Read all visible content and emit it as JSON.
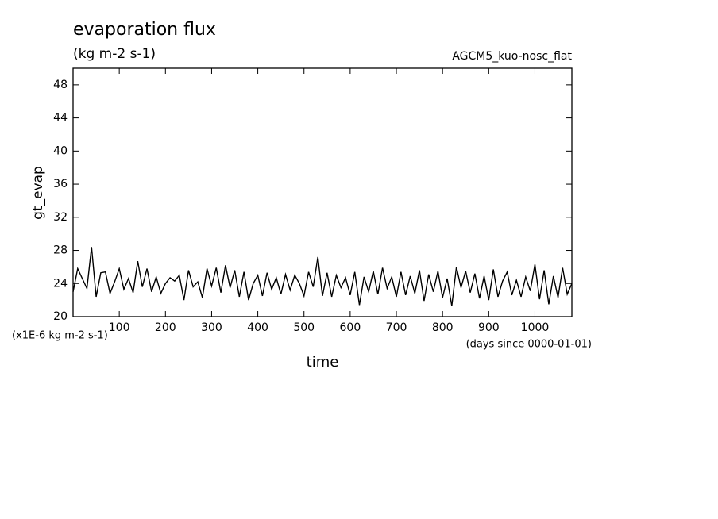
{
  "chart_data": {
    "type": "line",
    "title": "evaporation flux",
    "subtitle": "(kg m-2 s-1)",
    "experiment": "AGCM5_kuo-nosc_flat",
    "y_label": "gt_evap",
    "x_label": "time",
    "y_unit_note": "(x1E-6 kg m-2 s-1)",
    "x_unit_note": "(days since 0000-01-01)",
    "color": "#000000",
    "x": [
      0,
      10,
      20,
      30,
      40,
      50,
      60,
      70,
      80,
      90,
      100,
      110,
      120,
      130,
      140,
      150,
      160,
      170,
      180,
      190,
      200,
      210,
      220,
      230,
      240,
      250,
      260,
      270,
      280,
      290,
      300,
      310,
      320,
      330,
      340,
      350,
      360,
      370,
      380,
      390,
      400,
      410,
      420,
      430,
      440,
      450,
      460,
      470,
      480,
      490,
      500,
      510,
      520,
      530,
      540,
      550,
      560,
      570,
      580,
      590,
      600,
      610,
      620,
      630,
      640,
      650,
      660,
      670,
      680,
      690,
      700,
      710,
      720,
      730,
      740,
      750,
      760,
      770,
      780,
      790,
      800,
      810,
      820,
      830,
      840,
      850,
      860,
      870,
      880,
      890,
      900,
      910,
      920,
      930,
      940,
      950,
      960,
      970,
      980,
      990,
      1000,
      1010,
      1020,
      1030,
      1040,
      1050,
      1060,
      1070,
      1080
    ],
    "values": [
      23.0,
      25.8,
      24.6,
      23.4,
      28.4,
      22.4,
      25.3,
      25.4,
      22.8,
      24.2,
      25.8,
      23.3,
      24.6,
      22.9,
      26.7,
      23.6,
      25.8,
      23.0,
      24.8,
      22.8,
      24.0,
      24.7,
      24.3,
      25.0,
      22.0,
      25.6,
      23.6,
      24.2,
      22.3,
      25.8,
      23.7,
      25.9,
      22.9,
      26.2,
      23.5,
      25.6,
      22.4,
      25.4,
      22.0,
      24.0,
      25.0,
      22.5,
      25.3,
      23.3,
      24.7,
      22.7,
      25.1,
      23.2,
      25.0,
      24.0,
      22.5,
      25.4,
      23.6,
      27.2,
      22.5,
      25.3,
      22.4,
      25.0,
      23.5,
      24.7,
      22.6,
      25.4,
      21.4,
      24.8,
      23.0,
      25.5,
      22.7,
      25.9,
      23.4,
      24.8,
      22.4,
      25.4,
      22.6,
      24.9,
      22.8,
      25.6,
      21.9,
      25.1,
      23.0,
      25.5,
      22.3,
      24.6,
      21.3,
      26.0,
      23.5,
      25.5,
      22.9,
      25.2,
      22.2,
      24.9,
      22.0,
      25.7,
      22.4,
      24.3,
      25.4,
      22.6,
      24.4,
      22.4,
      24.8,
      23.1,
      26.3,
      22.1,
      25.6,
      21.5,
      24.9,
      22.3,
      25.9,
      22.7,
      24.0
    ],
    "xlim": [
      0,
      1080
    ],
    "ylim": [
      20,
      50
    ],
    "xticks": [
      100,
      200,
      300,
      400,
      500,
      600,
      700,
      800,
      900,
      1000
    ],
    "yticks": [
      20,
      24,
      28,
      32,
      36,
      40,
      44,
      48
    ]
  }
}
